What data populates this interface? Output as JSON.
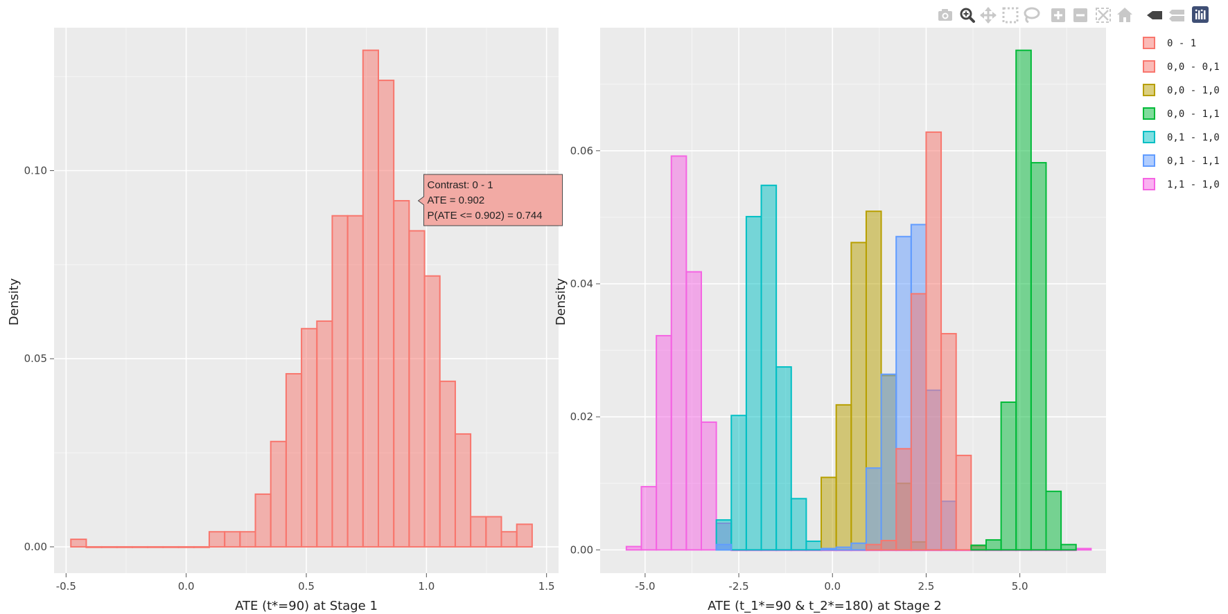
{
  "toolbar": {
    "buttons": [
      {
        "name": "camera-icon",
        "label": "Download plot as a png"
      },
      {
        "name": "zoom-icon",
        "label": "Zoom"
      },
      {
        "name": "pan-icon",
        "label": "Pan"
      },
      {
        "name": "box-select-icon",
        "label": "Box Select"
      },
      {
        "name": "lasso-select-icon",
        "label": "Lasso Select"
      },
      {
        "name": "zoom-in-icon",
        "label": "Zoom in"
      },
      {
        "name": "zoom-out-icon",
        "label": "Zoom out"
      },
      {
        "name": "autoscale-icon",
        "label": "Autoscale"
      },
      {
        "name": "reset-axes-icon",
        "label": "Reset axes"
      },
      {
        "name": "hover-closest-icon",
        "label": "Show closest data on hover"
      },
      {
        "name": "hover-compare-icon",
        "label": "Compare data on hover"
      },
      {
        "name": "plotly-logo-icon",
        "label": "Produced with Plotly"
      }
    ]
  },
  "colors": {
    "panel_bg": "#ebebeb",
    "grid": "#ffffff",
    "series": {
      "0 - 1": "#f8766d",
      "0,0 - 0,1": "#f8766d",
      "0,0 - 1,0": "#b79f00",
      "0,0 - 1,1": "#00ba38",
      "0,1 - 1,0": "#00bfc4",
      "0,1 - 1,1": "#619cff",
      "1,1 - 1,0": "#f564e3"
    }
  },
  "legend": {
    "items": [
      "0 - 1",
      "0,0 - 0,1",
      "0,0 - 1,0",
      "0,0 - 1,1",
      "0,1 - 1,0",
      "0,1 - 1,1",
      "1,1 - 1,0"
    ]
  },
  "chart_data": [
    {
      "type": "histogram",
      "title": "",
      "xlabel": "ATE (t*=90) at Stage 1",
      "ylabel": "Density",
      "xlim": [
        -0.55,
        1.55
      ],
      "ylim": [
        -0.007,
        0.138
      ],
      "xticks": [
        -0.5,
        0.0,
        0.5,
        1.0,
        1.5
      ],
      "xtick_labels": [
        "-0.5",
        "0.0",
        "0.5",
        "1.0",
        "1.5"
      ],
      "yticks": [
        0.0,
        0.05,
        0.1
      ],
      "ytick_labels": [
        "0.00",
        "0.05",
        "0.10"
      ],
      "bin_width": 0.064,
      "series": [
        {
          "name": "0 - 1",
          "bins": [
            [
              -0.48,
              0.002
            ],
            [
              -0.416,
              0.0
            ],
            [
              -0.352,
              0.0
            ],
            [
              -0.288,
              0.0
            ],
            [
              -0.224,
              0.0
            ],
            [
              -0.16,
              0.0
            ],
            [
              -0.096,
              0.0
            ],
            [
              -0.032,
              0.0
            ],
            [
              0.032,
              0.0
            ],
            [
              0.096,
              0.004
            ],
            [
              0.16,
              0.004
            ],
            [
              0.224,
              0.004
            ],
            [
              0.288,
              0.014
            ],
            [
              0.352,
              0.028
            ],
            [
              0.416,
              0.046
            ],
            [
              0.48,
              0.058
            ],
            [
              0.544,
              0.06
            ],
            [
              0.608,
              0.088
            ],
            [
              0.672,
              0.088
            ],
            [
              0.736,
              0.132
            ],
            [
              0.8,
              0.124
            ],
            [
              0.864,
              0.092
            ],
            [
              0.928,
              0.084
            ],
            [
              0.992,
              0.072
            ],
            [
              1.056,
              0.044
            ],
            [
              1.12,
              0.03
            ],
            [
              1.184,
              0.008
            ],
            [
              1.248,
              0.008
            ],
            [
              1.312,
              0.004
            ],
            [
              1.376,
              0.006
            ]
          ]
        }
      ],
      "tooltip": {
        "lines": [
          "Contrast: 0 - 1",
          "ATE = 0.902",
          "P(ATE <= 0.902) = 0.744"
        ],
        "x": 0.902,
        "y": 0.092
      }
    },
    {
      "type": "histogram",
      "title": "",
      "xlabel": "ATE (t_1*=90 & t_2*=180) at Stage 2",
      "ylabel": "Density",
      "xlim": [
        -6.2,
        7.3
      ],
      "ylim": [
        -0.0035,
        0.0785
      ],
      "xticks": [
        -5.0,
        -2.5,
        0.0,
        2.5,
        5.0
      ],
      "xtick_labels": [
        "-5.0",
        "-2.5",
        "0.0",
        "2.5",
        "5.0"
      ],
      "yticks": [
        0.0,
        0.02,
        0.04,
        0.06
      ],
      "ytick_labels": [
        "0.00",
        "0.02",
        "0.04",
        "0.06"
      ],
      "bin_width": 0.4,
      "series": [
        {
          "name": "1,1 - 1,0",
          "bins": [
            [
              -5.5,
              0.0005
            ],
            [
              -5.1,
              0.0095
            ],
            [
              -4.7,
              0.0322
            ],
            [
              -4.3,
              0.0592
            ],
            [
              -3.9,
              0.0418
            ],
            [
              -3.5,
              0.0192
            ],
            [
              -3.1,
              0.004
            ],
            [
              -2.7,
              0.0
            ],
            [
              -2.3,
              0.0
            ],
            [
              -1.9,
              0.0
            ],
            [
              -1.5,
              0.0
            ],
            [
              -1.1,
              0.0
            ],
            [
              -0.7,
              0.0
            ],
            [
              -0.3,
              0.0
            ],
            [
              0.1,
              0.0
            ],
            [
              0.5,
              0.0
            ],
            [
              0.9,
              0.0
            ],
            [
              1.3,
              0.0
            ],
            [
              1.7,
              0.0
            ],
            [
              2.1,
              0.0
            ],
            [
              2.5,
              0.0
            ],
            [
              2.9,
              0.0
            ],
            [
              3.3,
              0.0
            ],
            [
              3.7,
              0.0
            ],
            [
              4.1,
              0.0
            ],
            [
              4.5,
              0.0
            ],
            [
              4.9,
              0.0
            ],
            [
              5.3,
              0.0
            ],
            [
              5.7,
              0.0
            ],
            [
              6.1,
              0.0
            ],
            [
              6.5,
              0.0002
            ]
          ]
        },
        {
          "name": "0,1 - 1,0",
          "bins": [
            [
              -3.1,
              0.0045
            ],
            [
              -2.7,
              0.0202
            ],
            [
              -2.3,
              0.0501
            ],
            [
              -1.9,
              0.0548
            ],
            [
              -1.5,
              0.0275
            ],
            [
              -1.1,
              0.0077
            ],
            [
              -0.7,
              0.0013
            ]
          ]
        },
        {
          "name": "0,0 - 1,0",
          "bins": [
            [
              -0.3,
              0.0109
            ],
            [
              0.1,
              0.0218
            ],
            [
              0.5,
              0.0462
            ],
            [
              0.9,
              0.0509
            ],
            [
              1.3,
              0.0262
            ],
            [
              1.7,
              0.01
            ],
            [
              2.1,
              0.0012
            ]
          ]
        },
        {
          "name": "0,1 - 1,1",
          "bins": [
            [
              -3.1,
              0.0008
            ],
            [
              -0.3,
              0.0002
            ],
            [
              0.1,
              0.0004
            ],
            [
              0.5,
              0.001
            ],
            [
              0.9,
              0.0123
            ],
            [
              1.3,
              0.0264
            ],
            [
              1.7,
              0.0471
            ],
            [
              2.1,
              0.0489
            ],
            [
              2.5,
              0.024
            ],
            [
              2.9,
              0.0073
            ]
          ]
        },
        {
          "name": "0,0 - 0,1",
          "bins": [
            [
              0.9,
              0.0008
            ],
            [
              1.3,
              0.0014
            ],
            [
              1.7,
              0.0152
            ],
            [
              2.1,
              0.0385
            ],
            [
              2.5,
              0.0628
            ],
            [
              2.9,
              0.0325
            ],
            [
              3.3,
              0.0142
            ],
            [
              3.7,
              0.0006
            ]
          ]
        },
        {
          "name": "0,0 - 1,1",
          "bins": [
            [
              3.7,
              0.0007
            ],
            [
              4.1,
              0.0015
            ],
            [
              4.5,
              0.0222
            ],
            [
              4.9,
              0.0751
            ],
            [
              5.3,
              0.0582
            ],
            [
              5.7,
              0.0088
            ],
            [
              6.1,
              0.0008
            ]
          ]
        }
      ]
    }
  ]
}
